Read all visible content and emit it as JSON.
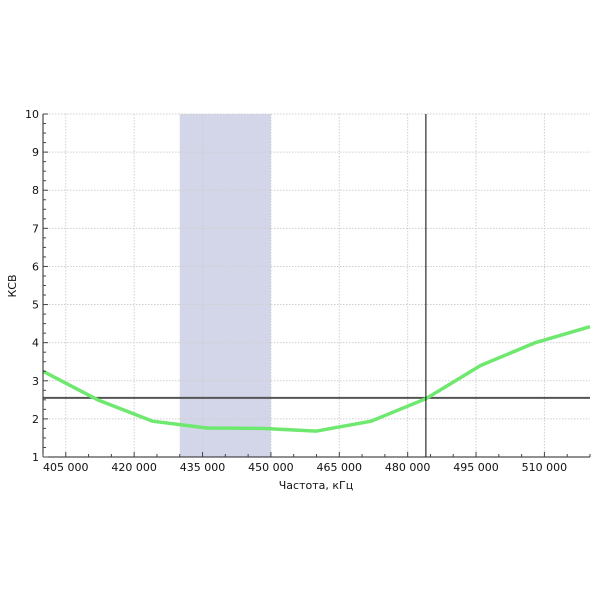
{
  "chart_data": {
    "type": "line",
    "title": "",
    "xlabel": "Частота, кГц",
    "ylabel": "КСВ",
    "xlim": [
      400000,
      520000
    ],
    "ylim": [
      1,
      10
    ],
    "x_ticks": [
      405000,
      420000,
      435000,
      450000,
      465000,
      480000,
      495000,
      510000
    ],
    "x_tick_labels": [
      "405 000",
      "420 000",
      "435 000",
      "450 000",
      "465 000",
      "480 000",
      "495 000",
      "510 000"
    ],
    "y_ticks": [
      1,
      2,
      3,
      4,
      5,
      6,
      7,
      8,
      9,
      10
    ],
    "y_tick_labels": [
      "1",
      "2",
      "3",
      "4",
      "5",
      "6",
      "7",
      "8",
      "9",
      "10"
    ],
    "grid": true,
    "series": [
      {
        "color": "#6ee86e",
        "x": [
          400000,
          412000,
          424000,
          436000,
          448000,
          460000,
          472000,
          484000,
          496000,
          508000,
          520000
        ],
        "y": [
          3.25,
          2.5,
          1.94,
          1.76,
          1.75,
          1.68,
          1.94,
          2.53,
          3.4,
          4.0,
          4.42
        ]
      }
    ],
    "shaded_band": {
      "x": [
        430000,
        450000
      ],
      "color": "#d3d5e8"
    },
    "horizontal_line": {
      "y": 2.55,
      "color": "#555555"
    },
    "vertical_line": {
      "x": 484000,
      "color": "#000000"
    }
  }
}
